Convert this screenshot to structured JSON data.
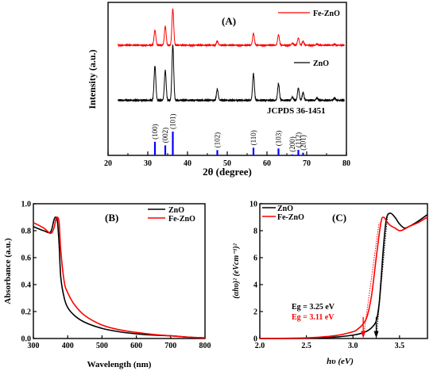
{
  "chart_data": [
    {
      "panel_label": "(A)",
      "type": "line",
      "xlabel": "2θ (degree)",
      "ylabel": "Intensity (a.u.)",
      "xlim": [
        20,
        80
      ],
      "xticks": [
        "20",
        "30",
        "40",
        "50",
        "60",
        "70",
        "80"
      ],
      "reference_label": "JCPDS 36-1451",
      "series": [
        {
          "name": "Fe-ZnO",
          "color": "#ff0000",
          "baseline": 0.08,
          "peaks": [
            [
              31.8,
              0.38
            ],
            [
              34.4,
              0.48
            ],
            [
              36.3,
              0.92
            ],
            [
              47.5,
              0.1
            ],
            [
              56.6,
              0.3
            ],
            [
              62.9,
              0.26
            ],
            [
              66.4,
              0.05
            ],
            [
              67.9,
              0.18
            ],
            [
              69.1,
              0.1
            ],
            [
              72.6,
              0.03
            ],
            [
              77.0,
              0.03
            ]
          ]
        },
        {
          "name": "ZnO",
          "color": "#000000",
          "baseline": 0.05,
          "peaks": [
            [
              31.8,
              0.62
            ],
            [
              34.4,
              0.54
            ],
            [
              36.3,
              1.0
            ],
            [
              47.5,
              0.2
            ],
            [
              56.6,
              0.48
            ],
            [
              62.9,
              0.3
            ],
            [
              66.4,
              0.06
            ],
            [
              67.9,
              0.22
            ],
            [
              69.1,
              0.14
            ],
            [
              72.6,
              0.04
            ],
            [
              77.0,
              0.04
            ]
          ]
        }
      ],
      "reference_peaks": [
        {
          "x": 31.8,
          "h": 0.57,
          "hkl": "(100)"
        },
        {
          "x": 34.4,
          "h": 0.42,
          "hkl": "(002)"
        },
        {
          "x": 36.3,
          "h": 1.0,
          "hkl": "(101)"
        },
        {
          "x": 47.5,
          "h": 0.22,
          "hkl": "(102)"
        },
        {
          "x": 56.6,
          "h": 0.32,
          "hkl": "(110)"
        },
        {
          "x": 62.9,
          "h": 0.29,
          "hkl": "(103)"
        },
        {
          "x": 66.4,
          "h": 0.04,
          "hkl": "(200)"
        },
        {
          "x": 67.9,
          "h": 0.23,
          "hkl": "(112)"
        },
        {
          "x": 69.1,
          "h": 0.11,
          "hkl": "(201)"
        }
      ],
      "reference_color": "#0000ff"
    },
    {
      "panel_label": "(B)",
      "type": "line",
      "xlabel": "Wavelength (nm)",
      "ylabel": "Absorbance (a.u.)",
      "xlim": [
        300,
        800
      ],
      "ylim": [
        0,
        1.0
      ],
      "xticks": [
        "300",
        "400",
        "500",
        "600",
        "700",
        "800"
      ],
      "yticks": [
        "0.0",
        "0.2",
        "0.4",
        "0.6",
        "0.8",
        "1.0"
      ],
      "series": [
        {
          "name": "ZnO",
          "color": "#000000",
          "x": [
            300,
            330,
            350,
            360,
            365,
            370,
            375,
            380,
            390,
            400,
            420,
            450,
            500,
            550,
            600,
            650,
            700,
            750,
            800
          ],
          "y": [
            0.83,
            0.8,
            0.79,
            0.88,
            0.9,
            0.87,
            0.7,
            0.45,
            0.3,
            0.23,
            0.17,
            0.12,
            0.075,
            0.05,
            0.035,
            0.025,
            0.02,
            0.01,
            0.005
          ]
        },
        {
          "name": "Fe-ZnO",
          "color": "#ff0000",
          "x": [
            300,
            330,
            350,
            360,
            365,
            370,
            375,
            380,
            390,
            400,
            420,
            450,
            500,
            550,
            600,
            650,
            700,
            750,
            800
          ],
          "y": [
            0.86,
            0.82,
            0.78,
            0.82,
            0.88,
            0.9,
            0.86,
            0.65,
            0.42,
            0.34,
            0.25,
            0.17,
            0.1,
            0.065,
            0.045,
            0.03,
            0.02,
            0.01,
            0.005
          ]
        }
      ]
    },
    {
      "panel_label": "(C)",
      "type": "line",
      "xlabel": "hυ (eV)",
      "ylabel": "(αhυ)² (eVcm⁻¹)²",
      "xlim": [
        2.0,
        3.8
      ],
      "ylim": [
        0,
        10
      ],
      "xticks": [
        "2.0",
        "2.5",
        "3.0",
        "3.5"
      ],
      "yticks": [
        "0",
        "2",
        "4",
        "6",
        "8",
        "10"
      ],
      "series": [
        {
          "name": "ZnO",
          "color": "#000000",
          "x": [
            2.0,
            2.5,
            2.8,
            3.0,
            3.1,
            3.15,
            3.2,
            3.25,
            3.28,
            3.3,
            3.33,
            3.36,
            3.4,
            3.45,
            3.5,
            3.55,
            3.6,
            3.7,
            3.8
          ],
          "y": [
            0.0,
            0.02,
            0.1,
            0.25,
            0.4,
            0.55,
            0.8,
            1.3,
            2.5,
            4.2,
            7.0,
            8.9,
            9.3,
            9.0,
            8.5,
            8.2,
            8.3,
            8.7,
            9.2
          ]
        },
        {
          "name": "Fe-ZnO",
          "color": "#ff0000",
          "x": [
            2.0,
            2.5,
            2.8,
            3.0,
            3.05,
            3.1,
            3.15,
            3.2,
            3.25,
            3.3,
            3.33,
            3.36,
            3.4,
            3.45,
            3.5,
            3.55,
            3.6,
            3.7,
            3.8
          ],
          "y": [
            0.0,
            0.05,
            0.2,
            0.5,
            0.7,
            1.0,
            1.6,
            3.2,
            6.0,
            8.6,
            9.0,
            8.7,
            8.4,
            8.2,
            8.0,
            8.1,
            8.3,
            8.6,
            9.0
          ]
        }
      ],
      "annotations": [
        {
          "text": "Eg = 3.25 eV",
          "color": "#000000",
          "arrow_x": 3.25
        },
        {
          "text": "Eg = 3.11 eV",
          "color": "#ff0000",
          "arrow_x": 3.11
        }
      ]
    }
  ]
}
